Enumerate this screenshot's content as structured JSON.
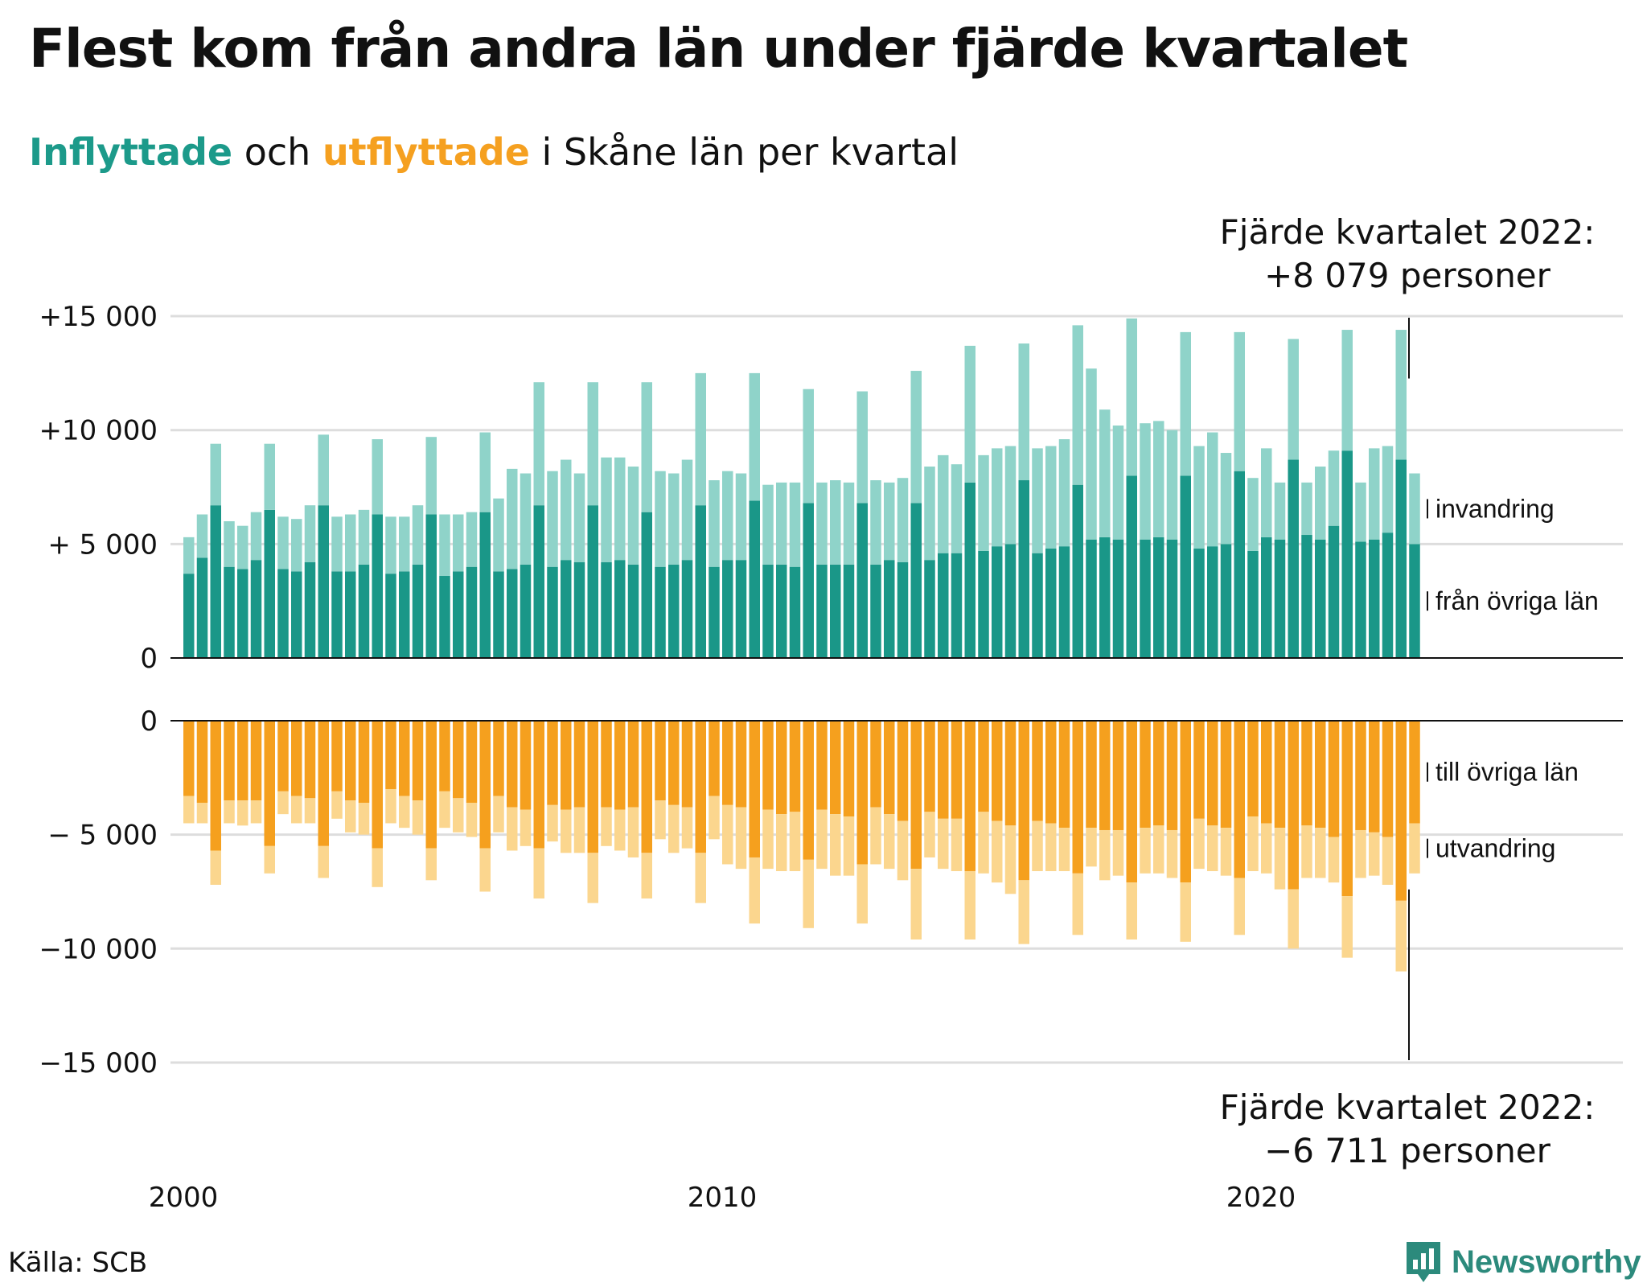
{
  "title": "Flest kom från andra län under fjärde kvartalet",
  "subtitle": {
    "in_word": "Inflyttade",
    "middle": "och",
    "out_word": "utflyttade",
    "rest": "i Skåne län per kvartal"
  },
  "annotations": {
    "top_line1": "Fjärde kvartalet 2022:",
    "top_line2": "+8 079 personer",
    "bottom_line1": "Fjärde kvartalet 2022:",
    "bottom_line2": "−6 711 personer"
  },
  "source": "Källa: SCB",
  "brand": "Newsworthy",
  "colors": {
    "in_domestic": "#1a9788",
    "in_immigration": "#8fd3c9",
    "out_domestic": "#f5a01e",
    "out_emigration": "#fbd68e",
    "grid": "#dddddd",
    "brand": "#2c8a7c"
  },
  "chart_data": {
    "type": "bar",
    "stacked": true,
    "x_start": "2000 Q1",
    "x_ticks": [
      "2000",
      "2010",
      "2020"
    ],
    "top_panel": {
      "ylim": [
        0,
        15000
      ],
      "ticks": [
        "0",
        "+ 5 000",
        "+10 000",
        "+15 000"
      ],
      "tick_values": [
        0,
        5000,
        10000,
        15000
      ],
      "series": [
        {
          "name": "från övriga län",
          "values": [
            3700,
            4400,
            6700,
            4000,
            3900,
            4300,
            6500,
            3900,
            3800,
            4200,
            6700,
            3800,
            3800,
            4100,
            6300,
            3700,
            3800,
            4100,
            6300,
            3600,
            3800,
            4000,
            6400,
            3800,
            3900,
            4100,
            6700,
            4000,
            4300,
            4200,
            6700,
            4200,
            4300,
            4100,
            6400,
            4000,
            4100,
            4300,
            6700,
            4000,
            4300,
            4300,
            6900,
            4100,
            4100,
            4000,
            6800,
            4100,
            4100,
            4100,
            6800,
            4100,
            4300,
            4200,
            6800,
            4300,
            4600,
            4600,
            7700,
            4700,
            4900,
            5000,
            7800,
            4600,
            4800,
            4900,
            7600,
            5200,
            5300,
            5200,
            8000,
            5200,
            5300,
            5200,
            8000,
            4800,
            4900,
            5000,
            8200,
            4700,
            5300,
            5200,
            8700,
            5400,
            5200,
            5800,
            9100,
            5100,
            5200,
            5500,
            8700,
            5000
          ]
        },
        {
          "name": "invandring",
          "values": [
            1600,
            1900,
            2700,
            2000,
            1900,
            2100,
            2900,
            2300,
            2300,
            2500,
            3100,
            2400,
            2500,
            2400,
            3300,
            2500,
            2400,
            2600,
            3400,
            2700,
            2500,
            2400,
            3500,
            3200,
            4400,
            4000,
            5400,
            4200,
            4400,
            3900,
            5400,
            4600,
            4500,
            4300,
            5700,
            4200,
            4000,
            4400,
            5800,
            3800,
            3900,
            3800,
            5600,
            3500,
            3600,
            3700,
            5000,
            3600,
            3700,
            3600,
            4900,
            3700,
            3400,
            3700,
            5800,
            4100,
            4300,
            3900,
            6000,
            4200,
            4300,
            4300,
            6000,
            4600,
            4500,
            4700,
            7000,
            7500,
            5600,
            5000,
            6900,
            5100,
            5100,
            4800,
            6300,
            4500,
            5000,
            4000,
            6100,
            3200,
            3900,
            2500,
            5300,
            2300,
            3200,
            3300,
            5300,
            2600,
            4000,
            3800,
            5700,
            3100
          ]
        }
      ]
    },
    "bottom_panel": {
      "ylim": [
        -15000,
        0
      ],
      "ticks": [
        "0",
        "− 5 000",
        "−10 000",
        "−15 000"
      ],
      "tick_values": [
        0,
        -5000,
        -10000,
        -15000
      ],
      "series": [
        {
          "name": "till övriga län",
          "values": [
            3300,
            3600,
            5700,
            3500,
            3500,
            3500,
            5500,
            3100,
            3300,
            3400,
            5500,
            3100,
            3500,
            3600,
            5600,
            3000,
            3300,
            3500,
            5600,
            3100,
            3400,
            3600,
            5600,
            3300,
            3800,
            3900,
            5600,
            3700,
            3900,
            3800,
            5800,
            3800,
            3900,
            3800,
            5800,
            3500,
            3700,
            3800,
            5800,
            3300,
            3700,
            3800,
            6000,
            3900,
            4100,
            4000,
            6100,
            3900,
            4100,
            4200,
            6300,
            3800,
            4100,
            4400,
            6500,
            4000,
            4300,
            4300,
            6600,
            4000,
            4400,
            4600,
            7000,
            4400,
            4500,
            4700,
            6700,
            4700,
            4800,
            4800,
            7100,
            4700,
            4600,
            4800,
            7100,
            4300,
            4600,
            4700,
            6900,
            4200,
            4500,
            4700,
            7400,
            4600,
            4700,
            5100,
            7700,
            4800,
            4900,
            5100,
            7900,
            4500
          ]
        },
        {
          "name": "utvandring",
          "values": [
            1200,
            900,
            1500,
            1000,
            1100,
            1000,
            1200,
            1000,
            1200,
            1100,
            1400,
            1200,
            1400,
            1400,
            1700,
            1500,
            1400,
            1500,
            1400,
            1600,
            1500,
            1500,
            1900,
            1600,
            1900,
            1600,
            2200,
            1600,
            1900,
            2000,
            2200,
            1700,
            1800,
            2200,
            2000,
            1700,
            2100,
            1800,
            2200,
            1900,
            2600,
            2700,
            2900,
            2600,
            2500,
            2600,
            3000,
            2600,
            2700,
            2600,
            2600,
            2500,
            2400,
            2600,
            3100,
            2000,
            2200,
            2300,
            3000,
            2700,
            2700,
            3000,
            2800,
            2200,
            2100,
            1900,
            2700,
            1700,
            2200,
            2000,
            2500,
            2000,
            2100,
            2100,
            2600,
            2200,
            2000,
            2100,
            2500,
            2400,
            2200,
            2700,
            2600,
            2300,
            2200,
            2000,
            2700,
            2100,
            1900,
            2100,
            3100,
            2200
          ]
        }
      ]
    },
    "right_labels": [
      "invandring",
      "från övriga län",
      "till övriga län",
      "utvandring"
    ],
    "grid": true
  }
}
